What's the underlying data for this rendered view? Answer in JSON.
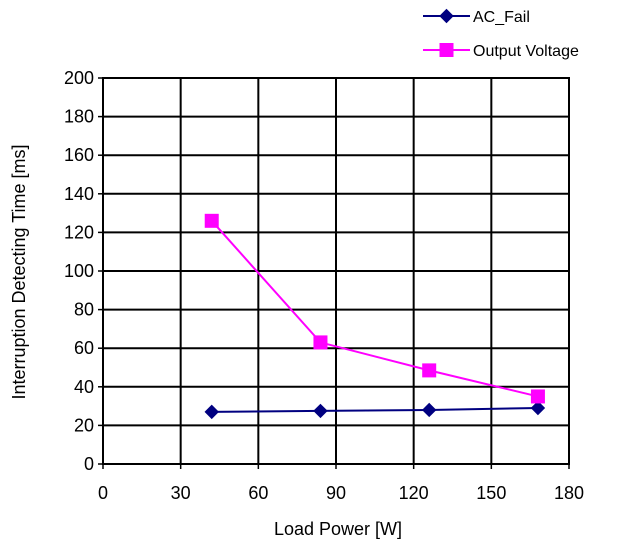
{
  "chart_data": {
    "type": "line",
    "title": "",
    "xlabel": "Load Power [W]",
    "ylabel": "Interruption Detecting Time [ms]",
    "xlim": [
      0,
      180
    ],
    "ylim": [
      0,
      200
    ],
    "xticks": [
      0,
      30,
      60,
      90,
      120,
      150,
      180
    ],
    "yticks": [
      0,
      20,
      40,
      60,
      80,
      100,
      120,
      140,
      160,
      180,
      200
    ],
    "grid": true,
    "legend_position": "top-right",
    "series": [
      {
        "name": "AC_Fail",
        "color": "#000080",
        "marker": "diamond",
        "x": [
          42,
          84,
          126,
          168
        ],
        "y": [
          27,
          27.5,
          28,
          29
        ]
      },
      {
        "name": "Output Voltage",
        "color": "#ff00ff",
        "marker": "square",
        "x": [
          42,
          84,
          126,
          168
        ],
        "y": [
          126,
          63,
          48.5,
          35
        ]
      }
    ]
  }
}
